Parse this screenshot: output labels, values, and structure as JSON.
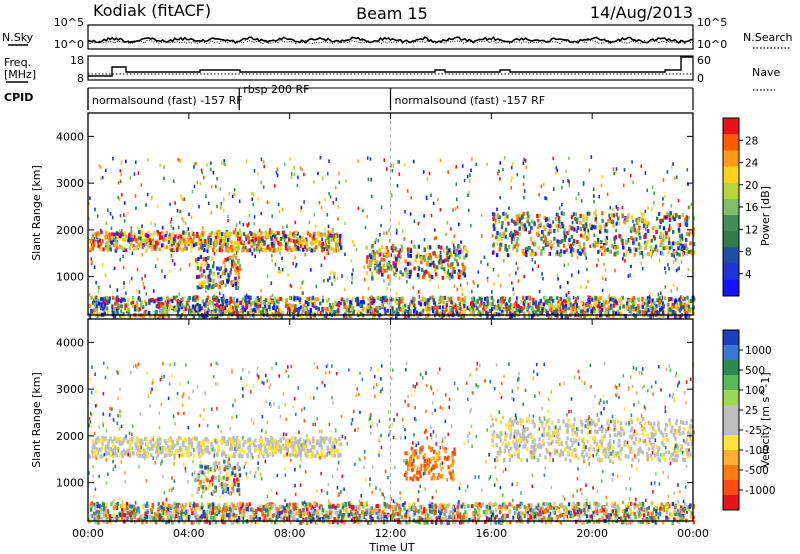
{
  "header": {
    "station": "Kodiak (fitACF)",
    "beam": "Beam 15",
    "date": "14/Aug/2013"
  },
  "aux_panels": {
    "nsky_label": "N.Sky",
    "nsearch_label": "N.Search",
    "count_ticks_left": [
      "10^5",
      "10^0"
    ],
    "count_ticks_right": [
      "10^5",
      "10^0"
    ],
    "freq_label_1": "Freq.",
    "freq_label_2": "[MHz]",
    "freq_ticks": [
      "18",
      "8"
    ],
    "nave_label": "Nave",
    "nave_ticks": [
      "60",
      "0"
    ],
    "cpid_label": "CPID",
    "cpid_segments": [
      {
        "label": "normalsound (fast) -157 RF",
        "start": 0.0,
        "end": 6.0
      },
      {
        "label": "rbsp 200 RF",
        "start": 6.0,
        "end": 12.0
      },
      {
        "label": "normalsound (fast) -157 RF",
        "start": 12.0,
        "end": 24.0
      }
    ]
  },
  "time_axis": {
    "label": "Time UT",
    "ticks": [
      "00:00",
      "04:00",
      "08:00",
      "12:00",
      "16:00",
      "20:00",
      "00:00"
    ]
  },
  "colorbars": {
    "power": {
      "label": "Power [dB]",
      "ticks": [
        "28",
        "24",
        "20",
        "16",
        "12",
        "8",
        "4"
      ],
      "colors": [
        "#e8121e",
        "#ff5a00",
        "#ff9a16",
        "#ffd21a",
        "#b8d438",
        "#7dbf6a",
        "#3f8e52",
        "#2f7e4a",
        "#1f4fa0",
        "#1f33d8",
        "#1212ff"
      ]
    },
    "velocity": {
      "label": "Velocity [m s^-1]",
      "ticks": [
        "1000",
        "500",
        "100",
        "25",
        "-25",
        "-100",
        "-500",
        "-1000"
      ],
      "colors": [
        "#1a3fbf",
        "#3a78d8",
        "#2c8a4e",
        "#58b85a",
        "#9ad65a",
        "#bdbdbd",
        "#bdbdbd",
        "#f8e43a",
        "#ffb030",
        "#ff7a10",
        "#ff4a10",
        "#e8121e"
      ]
    }
  },
  "chart_data": [
    {
      "type": "heatmap",
      "name": "",
      "xlabel": "Time UT",
      "ylabel": "Slant Range [km]",
      "y_ticks": [
        "1000",
        "2000",
        "3000",
        "4000"
      ],
      "xlim": [
        0,
        24
      ],
      "ylim": [
        180,
        4500
      ],
      "colorbar": "Power [dB]",
      "features": [
        {
          "t0": 0.0,
          "t1": 10.0,
          "r0": 1600,
          "r1": 2000
        },
        {
          "t0": 4.2,
          "t1": 6.0,
          "r0": 800,
          "r1": 1500
        },
        {
          "t0": 11.0,
          "t1": 15.0,
          "r0": 1000,
          "r1": 1700
        },
        {
          "t0": 16.0,
          "t1": 24.0,
          "r0": 1500,
          "r1": 2400
        },
        {
          "t0": 0.0,
          "t1": 24.0,
          "r0": 180,
          "r1": 600
        }
      ]
    },
    {
      "type": "heatmap",
      "name": "",
      "xlabel": "Time UT",
      "ylabel": "Slant Range [km]",
      "y_ticks": [
        "1000",
        "2000",
        "3000",
        "4000"
      ],
      "xlim": [
        0,
        24
      ],
      "ylim": [
        180,
        4500
      ],
      "colorbar": "Velocity [m s^-1]",
      "features": [
        {
          "t0": 0.0,
          "t1": 10.0,
          "r0": 1600,
          "r1": 2000
        },
        {
          "t0": 4.2,
          "t1": 6.0,
          "r0": 800,
          "r1": 1500
        },
        {
          "t0": 12.5,
          "t1": 14.5,
          "r0": 1100,
          "r1": 1800
        },
        {
          "t0": 16.0,
          "t1": 24.0,
          "r0": 1500,
          "r1": 2400
        },
        {
          "t0": 0.0,
          "t1": 24.0,
          "r0": 180,
          "r1": 600
        }
      ]
    }
  ]
}
